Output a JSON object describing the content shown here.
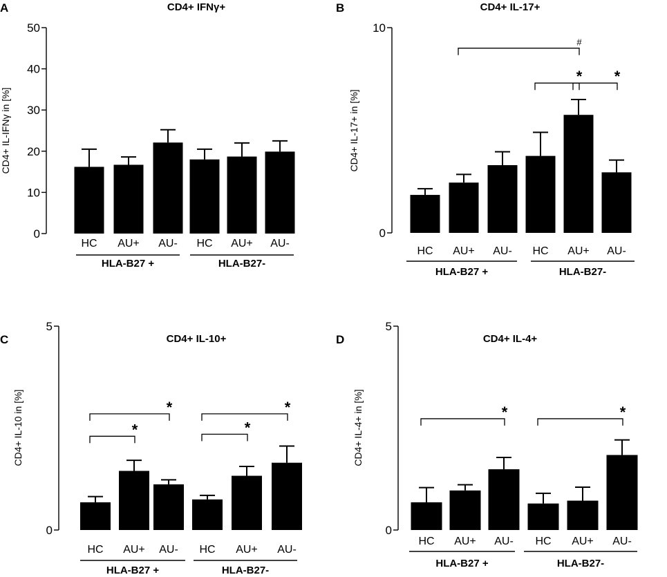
{
  "figure": {
    "panels": [
      {
        "letter": "A",
        "title": "CD4+ IFNγ+"
      },
      {
        "letter": "B",
        "title": "CD4+ IL-17+"
      },
      {
        "letter": "C",
        "title": "CD4+ IL-10+"
      },
      {
        "letter": "D",
        "title": "CD4+ IL-4+"
      }
    ]
  },
  "chart_data": [
    {
      "type": "bar",
      "panel": "A",
      "title": "CD4+ IFNγ+",
      "ylabel": "CD4+ IL-IFNγ in [%]",
      "xlabel": "",
      "ylim": [
        0,
        50
      ],
      "yticks": [
        0,
        10,
        20,
        30,
        40,
        50
      ],
      "grid": false,
      "categories": [
        "HC",
        "AU+",
        "AU-",
        "HC",
        "AU+",
        "AU-"
      ],
      "groups": [
        {
          "label": "HLA-B27 +",
          "indices": [
            0,
            1,
            2
          ]
        },
        {
          "label": "HLA-B27-",
          "indices": [
            3,
            4,
            5
          ]
        }
      ],
      "values": [
        16.2,
        16.7,
        22.1,
        18.0,
        18.7,
        19.9
      ],
      "error_upper": [
        4.3,
        1.9,
        3.1,
        2.5,
        3.3,
        2.6
      ],
      "significance": []
    },
    {
      "type": "bar",
      "panel": "B",
      "title": "CD4+ IL-17+",
      "ylabel": "CD4+ IL-17+ in [%]",
      "xlabel": "",
      "ylim": [
        0,
        10
      ],
      "yticks": [
        0,
        10
      ],
      "grid": false,
      "categories": [
        "HC",
        "AU+",
        "AU-",
        "HC",
        "AU+",
        "AU-"
      ],
      "groups": [
        {
          "label": "HLA-B27 +",
          "indices": [
            0,
            1,
            2
          ]
        },
        {
          "label": "HLA-B27-",
          "indices": [
            3,
            4,
            5
          ]
        }
      ],
      "values": [
        1.85,
        2.45,
        3.3,
        3.75,
        5.75,
        2.95
      ],
      "error_upper": [
        0.3,
        0.4,
        0.65,
        1.15,
        0.75,
        0.6
      ],
      "significance": [
        {
          "from": 1,
          "to": 4,
          "symbol": "#",
          "level": 9.0
        },
        {
          "from": 3,
          "to": 4,
          "symbol": "*",
          "level": 7.3
        },
        {
          "from": 4,
          "to": 5,
          "symbol": "*",
          "level": 7.3
        }
      ]
    },
    {
      "type": "bar",
      "panel": "C",
      "title": "CD4+ IL-10+",
      "ylabel": "CD4+ IL-10 in [%]",
      "xlabel": "",
      "ylim": [
        0,
        5
      ],
      "yticks": [
        0,
        5
      ],
      "grid": false,
      "categories": [
        "HC",
        "AU+",
        "AU-",
        "HC",
        "AU+",
        "AU-"
      ],
      "groups": [
        {
          "label": "HLA-B27 +",
          "indices": [
            0,
            1,
            2
          ]
        },
        {
          "label": "HLA-B27-",
          "indices": [
            3,
            4,
            5
          ]
        }
      ],
      "values": [
        0.68,
        1.45,
        1.12,
        0.75,
        1.33,
        1.65
      ],
      "error_upper": [
        0.14,
        0.26,
        0.11,
        0.1,
        0.23,
        0.41
      ],
      "significance": [
        {
          "from": 0,
          "to": 2,
          "symbol": "*",
          "level": 2.85
        },
        {
          "from": 0,
          "to": 1,
          "symbol": "*",
          "level": 2.3
        },
        {
          "from": 3,
          "to": 5,
          "symbol": "*",
          "level": 2.85
        },
        {
          "from": 3,
          "to": 4,
          "symbol": "*",
          "level": 2.35
        }
      ]
    },
    {
      "type": "bar",
      "panel": "D",
      "title": "CD4+ IL-4+",
      "ylabel": "CD4+ IL-4+ in [%]",
      "xlabel": "",
      "ylim": [
        0,
        5
      ],
      "yticks": [
        0,
        5
      ],
      "grid": false,
      "categories": [
        "HC",
        "AU+",
        "AU-",
        "HC",
        "AU+",
        "AU-"
      ],
      "groups": [
        {
          "label": "HLA-B27 +",
          "indices": [
            0,
            1,
            2
          ]
        },
        {
          "label": "HLA-B27-",
          "indices": [
            3,
            4,
            5
          ]
        }
      ],
      "values": [
        0.68,
        0.97,
        1.49,
        0.65,
        0.72,
        1.84
      ],
      "error_upper": [
        0.36,
        0.14,
        0.29,
        0.25,
        0.33,
        0.37
      ],
      "significance": [
        {
          "from": 0,
          "to": 2,
          "symbol": "*",
          "level": 2.73
        },
        {
          "from": 3,
          "to": 5,
          "symbol": "*",
          "level": 2.73
        }
      ]
    }
  ]
}
